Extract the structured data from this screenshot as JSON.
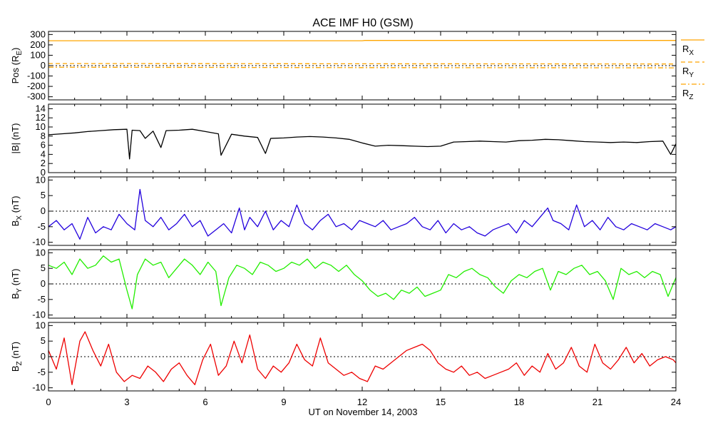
{
  "chart_data": {
    "type": "line",
    "title": "ACE IMF H0 (GSM)",
    "xlabel": "UT on November 14, 2003",
    "xlim": [
      0,
      24
    ],
    "x_ticks": [
      "0",
      "3",
      "6",
      "9",
      "12",
      "15",
      "18",
      "21",
      "24"
    ],
    "grid": false,
    "panels": [
      {
        "id": "pos",
        "ylabel": "Pos (R",
        "ylabel_sub": "E",
        "ylabel_tail": ")",
        "ylim": [
          -330,
          330
        ],
        "y_ticks": [
          "-300",
          "-200",
          "-100",
          "0",
          "100",
          "200",
          "300"
        ],
        "zero_line": true,
        "legend": [
          "R",
          "R",
          "R"
        ],
        "legend_sub": [
          "X",
          "Y",
          "Z"
        ],
        "series": [
          {
            "name": "RX",
            "color": "#ffa500",
            "style": "solid",
            "x": [
              0,
              12,
              12.1,
              24
            ],
            "y": [
              240,
              240,
              243,
              243
            ]
          },
          {
            "name": "RY",
            "color": "#ffa500",
            "style": "dashed",
            "x": [
              0,
              6,
              12,
              18,
              24
            ],
            "y": [
              20,
              19,
              18,
              17,
              16
            ]
          },
          {
            "name": "RZ",
            "color": "#ffa500",
            "style": "dashdot",
            "x": [
              0,
              6,
              12,
              18,
              24
            ],
            "y": [
              -15,
              -17,
              -19,
              -20,
              -21
            ]
          }
        ]
      },
      {
        "id": "bmag",
        "ylabel": "|B| (nT)",
        "ylim": [
          0,
          15
        ],
        "y_ticks": [
          "0",
          "2",
          "4",
          "6",
          "8",
          "10",
          "12",
          "14"
        ],
        "zero_line": false,
        "series": [
          {
            "name": "|B|",
            "color": "#000000",
            "x": [
              0,
              0.5,
              1,
              1.5,
              2,
              2.5,
              3,
              3.1,
              3.2,
              3.5,
              3.7,
              4,
              4.3,
              4.5,
              5,
              5.5,
              6,
              6.5,
              6.6,
              7,
              7.5,
              8,
              8.3,
              8.5,
              9,
              9.5,
              10,
              10.5,
              11,
              11.5,
              12,
              12.5,
              13,
              13.5,
              14,
              14.5,
              15,
              15.5,
              16,
              16.5,
              17,
              17.5,
              18,
              18.5,
              19,
              19.5,
              20,
              20.5,
              21,
              21.5,
              22,
              22.5,
              23,
              23.5,
              23.8,
              24
            ],
            "y": [
              8.3,
              8.5,
              8.7,
              9.0,
              9.2,
              9.4,
              9.5,
              3.0,
              9.3,
              9.2,
              7.5,
              9.1,
              5.5,
              9.2,
              9.3,
              9.5,
              9.0,
              8.5,
              3.8,
              8.4,
              8.0,
              7.7,
              4.2,
              7.5,
              7.6,
              7.8,
              7.9,
              7.8,
              7.6,
              7.3,
              6.5,
              5.8,
              6.0,
              5.9,
              5.8,
              5.7,
              5.8,
              6.7,
              6.8,
              6.9,
              6.8,
              6.7,
              7.0,
              7.1,
              7.3,
              7.2,
              7.0,
              6.8,
              6.7,
              6.6,
              6.7,
              6.6,
              6.8,
              6.9,
              4.0,
              6.3
            ]
          }
        ]
      },
      {
        "id": "bx",
        "ylabel": "B",
        "ylabel_sub": "X",
        "ylabel_tail": " (nT)",
        "ylim": [
          -11,
          11
        ],
        "y_ticks": [
          "-10",
          "-5",
          "0",
          "5",
          "10"
        ],
        "zero_line": true,
        "series": [
          {
            "name": "BX",
            "color": "#2200dd",
            "x": [
              0,
              0.3,
              0.6,
              0.9,
              1.2,
              1.5,
              1.8,
              2.1,
              2.4,
              2.7,
              3.0,
              3.3,
              3.5,
              3.7,
              4.0,
              4.3,
              4.6,
              4.9,
              5.2,
              5.5,
              5.8,
              6.1,
              6.4,
              6.7,
              7.0,
              7.3,
              7.5,
              7.7,
              8.0,
              8.3,
              8.6,
              8.9,
              9.2,
              9.5,
              9.8,
              10.1,
              10.4,
              10.7,
              11.0,
              11.3,
              11.6,
              11.9,
              12.2,
              12.5,
              12.8,
              13.1,
              13.4,
              13.7,
              14.0,
              14.3,
              14.6,
              14.9,
              15.2,
              15.5,
              15.8,
              16.1,
              16.4,
              16.7,
              17.0,
              17.3,
              17.6,
              17.9,
              18.2,
              18.5,
              18.8,
              19.1,
              19.3,
              19.6,
              19.9,
              20.2,
              20.5,
              20.8,
              21.1,
              21.4,
              21.7,
              22.0,
              22.3,
              22.6,
              22.9,
              23.2,
              23.5,
              23.8,
              24
            ],
            "y": [
              -5,
              -3,
              -6,
              -4,
              -9,
              -2,
              -7,
              -5,
              -6,
              -1,
              -4,
              -6,
              7,
              -3,
              -5,
              -2,
              -6,
              -4,
              -1,
              -5,
              -3,
              -8,
              -6,
              -4,
              -7,
              1,
              -6,
              -2,
              -5,
              0,
              -6,
              -3,
              -5,
              2,
              -4,
              -6,
              -3,
              -1,
              -5,
              -4,
              -6,
              -3,
              -4,
              -5,
              -3,
              -6,
              -5,
              -4,
              -2,
              -5,
              -6,
              -3,
              -7,
              -4,
              -6,
              -5,
              -7,
              -8,
              -6,
              -5,
              -4,
              -7,
              -3,
              -5,
              -2,
              1,
              -3,
              -4,
              -6,
              2,
              -5,
              -3,
              -6,
              -2,
              -5,
              -6,
              -4,
              -5,
              -6,
              -4,
              -5,
              -6,
              -5
            ]
          }
        ]
      },
      {
        "id": "by",
        "ylabel": "B",
        "ylabel_sub": "Y",
        "ylabel_tail": " (nT)",
        "ylim": [
          -11,
          11
        ],
        "y_ticks": [
          "-10",
          "-5",
          "0",
          "5",
          "10"
        ],
        "zero_line": true,
        "series": [
          {
            "name": "BY",
            "color": "#22ee00",
            "x": [
              0,
              0.3,
              0.6,
              0.9,
              1.2,
              1.5,
              1.8,
              2.1,
              2.4,
              2.7,
              3.0,
              3.2,
              3.4,
              3.7,
              4.0,
              4.3,
              4.6,
              4.9,
              5.2,
              5.5,
              5.8,
              6.1,
              6.4,
              6.6,
              6.9,
              7.2,
              7.5,
              7.8,
              8.1,
              8.4,
              8.7,
              9.0,
              9.3,
              9.6,
              9.9,
              10.2,
              10.5,
              10.8,
              11.1,
              11.4,
              11.7,
              12.0,
              12.3,
              12.6,
              12.9,
              13.2,
              13.5,
              13.8,
              14.1,
              14.4,
              14.7,
              15.0,
              15.3,
              15.6,
              15.9,
              16.2,
              16.5,
              16.8,
              17.1,
              17.4,
              17.7,
              18.0,
              18.3,
              18.6,
              18.9,
              19.2,
              19.5,
              19.8,
              20.1,
              20.4,
              20.7,
              21.0,
              21.3,
              21.6,
              21.9,
              22.2,
              22.5,
              22.8,
              23.1,
              23.4,
              23.7,
              24
            ],
            "y": [
              6,
              5,
              7,
              3,
              8,
              5,
              6,
              9,
              7,
              8,
              -2,
              -8,
              3,
              8,
              6,
              7,
              2,
              5,
              8,
              6,
              3,
              7,
              4,
              -7,
              2,
              6,
              5,
              3,
              7,
              6,
              4,
              5,
              7,
              6,
              8,
              5,
              7,
              6,
              4,
              6,
              3,
              1,
              -2,
              -4,
              -3,
              -5,
              -2,
              -3,
              -1,
              -4,
              -3,
              -2,
              3,
              2,
              4,
              5,
              3,
              2,
              -1,
              -3,
              1,
              3,
              2,
              4,
              5,
              -2,
              4,
              3,
              5,
              6,
              3,
              4,
              1,
              -5,
              5,
              3,
              4,
              2,
              4,
              3,
              -4,
              2
            ]
          }
        ]
      },
      {
        "id": "bz",
        "ylabel": "B",
        "ylabel_sub": "Z",
        "ylabel_tail": " (nT)",
        "ylim": [
          -11,
          11
        ],
        "y_ticks": [
          "-10",
          "-5",
          "0",
          "5",
          "10"
        ],
        "zero_line": true,
        "series": [
          {
            "name": "BZ",
            "color": "#ee0000",
            "x": [
              0,
              0.3,
              0.6,
              0.9,
              1.2,
              1.4,
              1.7,
              2.0,
              2.3,
              2.6,
              2.9,
              3.2,
              3.5,
              3.8,
              4.1,
              4.4,
              4.7,
              5.0,
              5.3,
              5.6,
              5.9,
              6.2,
              6.5,
              6.8,
              7.1,
              7.4,
              7.7,
              8.0,
              8.3,
              8.6,
              8.9,
              9.2,
              9.5,
              9.8,
              10.1,
              10.4,
              10.7,
              11.0,
              11.3,
              11.6,
              11.9,
              12.2,
              12.5,
              12.8,
              13.1,
              13.4,
              13.7,
              14.0,
              14.3,
              14.6,
              14.9,
              15.2,
              15.5,
              15.8,
              16.1,
              16.4,
              16.7,
              17.0,
              17.3,
              17.6,
              17.9,
              18.2,
              18.5,
              18.8,
              19.1,
              19.4,
              19.7,
              20.0,
              20.3,
              20.6,
              20.9,
              21.2,
              21.5,
              21.8,
              22.1,
              22.4,
              22.7,
              23.0,
              23.3,
              23.6,
              23.9,
              24
            ],
            "y": [
              2,
              -4,
              6,
              -9,
              5,
              8,
              2,
              -3,
              4,
              -5,
              -8,
              -6,
              -7,
              -3,
              -5,
              -8,
              -4,
              -2,
              -6,
              -9,
              -1,
              4,
              -6,
              -3,
              5,
              -2,
              7,
              -4,
              -7,
              -3,
              -5,
              -2,
              4,
              -1,
              -3,
              6,
              -2,
              -4,
              -6,
              -5,
              -7,
              -8,
              -3,
              -4,
              -2,
              0,
              2,
              3,
              4,
              2,
              -2,
              -4,
              -5,
              -3,
              -6,
              -5,
              -7,
              -6,
              -5,
              -4,
              -2,
              -6,
              -3,
              -5,
              1,
              -4,
              -2,
              3,
              -3,
              -5,
              4,
              -2,
              -4,
              -1,
              3,
              -2,
              1,
              -3,
              -1,
              0,
              -1,
              -2
            ]
          }
        ]
      }
    ]
  }
}
